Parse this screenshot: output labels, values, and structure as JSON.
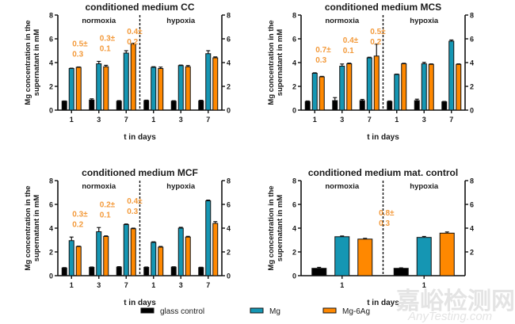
{
  "legend": [
    {
      "name": "glass control",
      "color": "#000000"
    },
    {
      "name": "Mg",
      "color": "#1596b3"
    },
    {
      "name": "Mg-6Ag",
      "color": "#ff8800"
    }
  ],
  "watermark": {
    "line1": "嘉峪检测网",
    "line2": "AnyTesting.com"
  },
  "chart_data": [
    {
      "type": "bar",
      "title": "conditioned medium CC",
      "ylabel": "Mg concentration in the supernatant in mM",
      "xlabel": "t in days",
      "ylim": [
        0,
        8
      ],
      "yticks": [
        0,
        2,
        4,
        6,
        8
      ],
      "right_axis_ticks": [
        0,
        2,
        4,
        6,
        8
      ],
      "groups": [
        {
          "condition": "normoxia",
          "categories": [
            "1",
            "3",
            "7"
          ],
          "series": {
            "glass control": [
              0.75,
              0.85,
              0.75
            ],
            "Mg": [
              3.5,
              3.9,
              4.8
            ],
            "Mg-6Ag": [
              3.6,
              3.65,
              5.55
            ]
          },
          "errors": {
            "glass control": [
              0.02,
              0.1,
              0.05
            ],
            "Mg": [
              0.03,
              0.2,
              0.2
            ],
            "Mg-6Ag": [
              0.03,
              0.12,
              0.08
            ]
          },
          "annotations": [
            "0.5±\n0.3",
            "0.3±\n0.1",
            "0.4±\n0.2"
          ]
        },
        {
          "condition": "hypoxia",
          "categories": [
            "1",
            "3",
            "7"
          ],
          "series": {
            "glass control": [
              0.8,
              0.75,
              0.78
            ],
            "Mg": [
              3.6,
              3.75,
              4.75
            ],
            "Mg-6Ag": [
              3.5,
              3.65,
              4.4
            ]
          },
          "errors": {
            "glass control": [
              0.04,
              0.04,
              0.05
            ],
            "Mg": [
              0.05,
              0.04,
              0.25
            ],
            "Mg-6Ag": [
              0.12,
              0.1,
              0.08
            ]
          },
          "annotations": []
        }
      ]
    },
    {
      "type": "bar",
      "title": "conditioned medium MCS",
      "ylabel": "Mg concentration in the supernatant in mM",
      "xlabel": "t in days",
      "ylim": [
        0,
        8
      ],
      "yticks": [
        0,
        2,
        4,
        6,
        8
      ],
      "right_axis_ticks": [
        0,
        2,
        4,
        6,
        8
      ],
      "groups": [
        {
          "condition": "normoxia",
          "categories": [
            "1",
            "3",
            "7"
          ],
          "series": {
            "glass control": [
              0.72,
              0.8,
              0.8
            ],
            "Mg": [
              3.1,
              3.7,
              4.4
            ],
            "Mg-6Ag": [
              2.8,
              3.9,
              4.55
            ]
          },
          "errors": {
            "glass control": [
              0.05,
              0.25,
              0.1
            ],
            "Mg": [
              0.04,
              0.18,
              0.05
            ],
            "Mg-6Ag": [
              0.04,
              0.05,
              1.0
            ]
          },
          "annotations": [
            "0.7±\n0.3",
            "0.4±\n0.1",
            "0.5±\n0.2"
          ]
        },
        {
          "condition": "hypoxia",
          "categories": [
            "1",
            "3",
            "7"
          ],
          "series": {
            "glass control": [
              0.72,
              0.8,
              0.7
            ],
            "Mg": [
              3.0,
              3.9,
              5.8
            ],
            "Mg-6Ag": [
              3.9,
              3.85,
              3.85
            ]
          },
          "errors": {
            "glass control": [
              0.05,
              0.12,
              0.03
            ],
            "Mg": [
              0.03,
              0.12,
              0.1
            ],
            "Mg-6Ag": [
              0.04,
              0.04,
              0.04
            ]
          },
          "annotations": []
        }
      ]
    },
    {
      "type": "bar",
      "title": "conditioned medium MCF",
      "ylabel": "Mg concentration in the supernatant in mM",
      "xlabel": "t in days",
      "ylim": [
        0,
        8
      ],
      "yticks": [
        0,
        2,
        4,
        6,
        8
      ],
      "right_axis_ticks": [
        0,
        2,
        4,
        6,
        8
      ],
      "groups": [
        {
          "condition": "normoxia",
          "categories": [
            "1",
            "3",
            "7"
          ],
          "series": {
            "glass control": [
              0.65,
              0.7,
              0.72
            ],
            "Mg": [
              2.95,
              3.7,
              4.3
            ],
            "Mg-6Ag": [
              2.45,
              3.3,
              3.95
            ]
          },
          "errors": {
            "glass control": [
              0.03,
              0.03,
              0.04
            ],
            "Mg": [
              0.3,
              0.35,
              0.05
            ],
            "Mg-6Ag": [
              0.03,
              0.05,
              0.05
            ]
          },
          "annotations": [
            "0.3±\n0.2",
            "0.2±\n0.1",
            "0.4±\n0.3"
          ]
        },
        {
          "condition": "hypoxia",
          "categories": [
            "1",
            "3",
            "7"
          ],
          "series": {
            "glass control": [
              0.7,
              0.72,
              0.68
            ],
            "Mg": [
              2.8,
              4.0,
              6.3
            ],
            "Mg-6Ag": [
              2.4,
              3.25,
              4.4
            ]
          },
          "errors": {
            "glass control": [
              0.03,
              0.03,
              0.03
            ],
            "Mg": [
              0.05,
              0.07,
              0.06
            ],
            "Mg-6Ag": [
              0.06,
              0.06,
              0.15
            ]
          },
          "annotations": []
        }
      ]
    },
    {
      "type": "bar",
      "title": "conditioned medium mat. control",
      "ylabel": "Mg concentration in the supernatant in mM",
      "xlabel": "t in days",
      "ylim": [
        0,
        8
      ],
      "yticks": [
        0,
        2,
        4,
        6,
        8
      ],
      "right_axis_ticks": [
        2,
        4,
        6,
        8
      ],
      "groups": [
        {
          "condition": "normoxia",
          "categories": [
            "1"
          ],
          "series": {
            "glass control": [
              0.62
            ],
            "Mg": [
              3.28
            ],
            "Mg-6Ag": [
              3.08
            ]
          },
          "errors": {
            "glass control": [
              0.08
            ],
            "Mg": [
              0.06
            ],
            "Mg-6Ag": [
              0.06
            ]
          },
          "annotations": [
            "0.8±\n0.3"
          ]
        },
        {
          "condition": "hypoxia",
          "categories": [
            "1"
          ],
          "series": {
            "glass control": [
              0.62
            ],
            "Mg": [
              3.22
            ],
            "Mg-6Ag": [
              3.58
            ]
          },
          "errors": {
            "glass control": [
              0.04
            ],
            "Mg": [
              0.08
            ],
            "Mg-6Ag": [
              0.1
            ]
          },
          "annotations": []
        }
      ]
    }
  ]
}
